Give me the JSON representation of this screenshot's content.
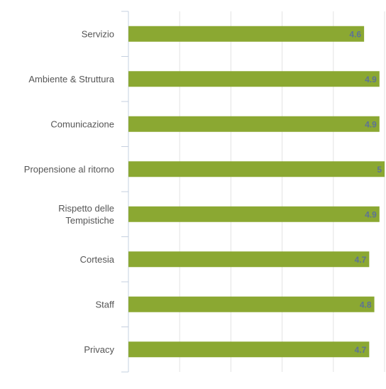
{
  "chart_data": {
    "type": "bar",
    "orientation": "horizontal",
    "categories": [
      "Servizio",
      "Ambiente & Struttura",
      "Comunicazione",
      "Propensione al ritorno",
      "Rispetto delle Tempistiche",
      "Cortesia",
      "Staff",
      "Privacy"
    ],
    "values": [
      4.6,
      4.9,
      4.9,
      5,
      4.9,
      4.7,
      4.8,
      4.7
    ],
    "value_labels": [
      "4.6",
      "4.9",
      "4.9",
      "5",
      "4.9",
      "4.7",
      "4.8",
      "4.7"
    ],
    "xlim": [
      0,
      5
    ],
    "x_ticks": [
      "0",
      "1",
      "2",
      "3",
      "4",
      "5"
    ],
    "grid": true,
    "colors": {
      "bar": "#8BA832",
      "label": "#5D7396",
      "grid": "#E3E3E3",
      "axis": "#C5D0E0"
    }
  }
}
